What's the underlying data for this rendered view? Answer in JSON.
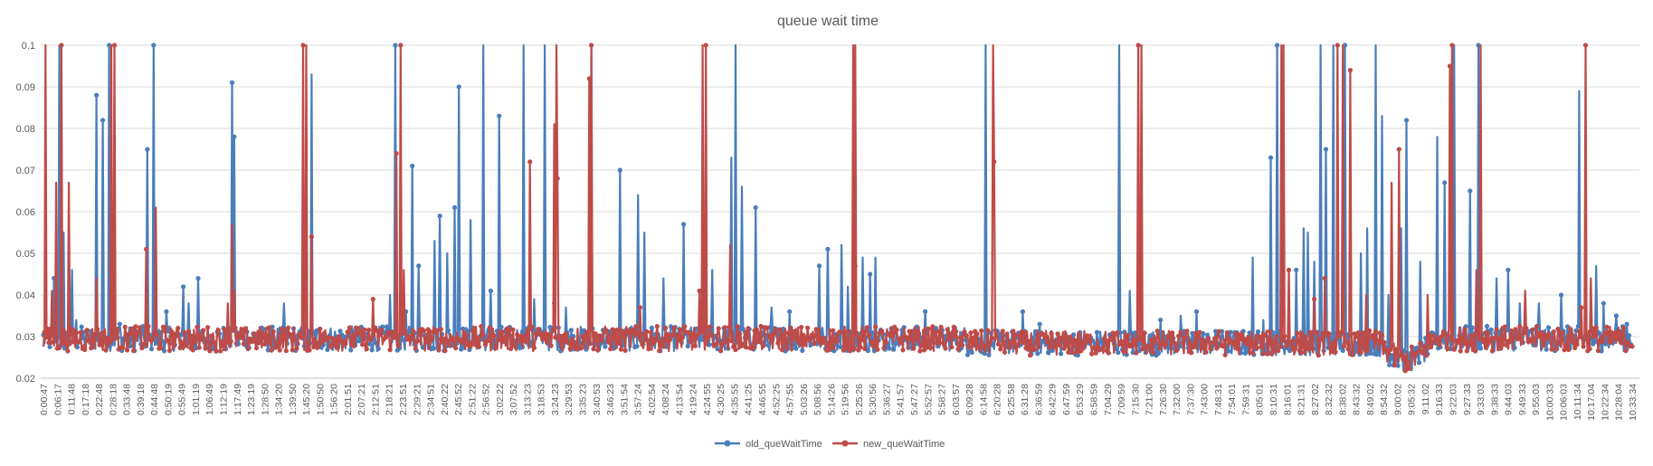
{
  "chart_data": {
    "type": "line",
    "title": "queue wait time",
    "xlabel": "",
    "ylabel": "",
    "ylim": [
      0.02,
      0.1
    ],
    "y_ticks": [
      "0.02",
      "0.03",
      "0.04",
      "0.05",
      "0.06",
      "0.07",
      "0.08",
      "0.09",
      "0.1"
    ],
    "grid": true,
    "legend_position": "bottom",
    "x_ticks": [
      "0:00:47",
      "0:06:17",
      "0:11:48",
      "0:17:18",
      "0:22:48",
      "0:28:18",
      "0:33:48",
      "0:39:18",
      "0:44:48",
      "0:50:19",
      "0:55:49",
      "1:01:19",
      "1:06:49",
      "1:12:19",
      "1:17:49",
      "1:23:19",
      "1:28:50",
      "1:34:20",
      "1:39:50",
      "1:45:20",
      "1:50:50",
      "1:56:20",
      "2:01:51",
      "2:07:21",
      "2:12:51",
      "2:18:21",
      "2:23:51",
      "2:29:21",
      "2:34:51",
      "2:40:22",
      "2:45:52",
      "2:51:22",
      "2:56:52",
      "3:02:22",
      "3:07:52",
      "3:13:23",
      "3:18:53",
      "3:24:23",
      "3:29:53",
      "3:35:23",
      "3:40:53",
      "3:46:23",
      "3:51:54",
      "3:57:24",
      "4:02:54",
      "4:08:24",
      "4:13:54",
      "4:19:24",
      "4:24:55",
      "4:30:25",
      "4:35:55",
      "4:41:25",
      "4:46:55",
      "4:52:25",
      "4:57:55",
      "5:03:26",
      "5:08:56",
      "5:14:26",
      "5:19:56",
      "5:25:26",
      "5:30:56",
      "5:36:27",
      "5:41:57",
      "5:47:27",
      "5:52:57",
      "5:58:27",
      "6:03:57",
      "6:09:28",
      "6:14:58",
      "6:20:28",
      "6:25:58",
      "6:31:28",
      "6:36:59",
      "6:42:29",
      "6:47:59",
      "6:53:29",
      "6:58:59",
      "7:04:29",
      "7:09:59",
      "7:15:30",
      "7:21:00",
      "7:26:30",
      "7:32:00",
      "7:37:30",
      "7:43:00",
      "7:48:31",
      "7:54:01",
      "7:59:31",
      "8:05:01",
      "8:10:31",
      "8:16:01",
      "8:21:31",
      "8:27:02",
      "8:32:32",
      "8:38:02",
      "8:43:32",
      "8:49:02",
      "8:54:32",
      "9:00:02",
      "9:05:32",
      "9:11:02",
      "9:16:33",
      "9:22:03",
      "9:27:33",
      "9:33:03",
      "9:38:33",
      "9:44:03",
      "9:49:33",
      "9:55:03",
      "10:00:33",
      "10:06:03",
      "10:11:34",
      "10:17:04",
      "10:22:34",
      "10:28:04",
      "10:33:34"
    ],
    "series": [
      {
        "name": "old_queWaitTime",
        "color": "#4a7ebb",
        "spikes": [
          [
            0.01,
            0.044
          ],
          [
            0.015,
            0.1
          ],
          [
            0.02,
            0.055
          ],
          [
            0.028,
            0.046
          ],
          [
            0.032,
            0.034
          ],
          [
            0.052,
            0.088
          ],
          [
            0.058,
            0.082
          ],
          [
            0.064,
            0.1
          ],
          [
            0.068,
            0.042
          ],
          [
            0.074,
            0.033
          ],
          [
            0.101,
            0.075
          ],
          [
            0.108,
            0.1
          ],
          [
            0.12,
            0.036
          ],
          [
            0.137,
            0.042
          ],
          [
            0.142,
            0.038
          ],
          [
            0.151,
            0.044
          ],
          [
            0.184,
            0.091
          ],
          [
            0.186,
            0.078
          ],
          [
            0.235,
            0.038
          ],
          [
            0.262,
            0.093
          ],
          [
            0.338,
            0.04
          ],
          [
            0.343,
            0.1
          ],
          [
            0.354,
            0.036
          ],
          [
            0.36,
            0.071
          ],
          [
            0.366,
            0.047
          ],
          [
            0.382,
            0.053
          ],
          [
            0.387,
            0.059
          ],
          [
            0.394,
            0.05
          ],
          [
            0.401,
            0.061
          ],
          [
            0.405,
            0.09
          ],
          [
            0.417,
            0.058
          ],
          [
            0.429,
            0.1
          ],
          [
            0.436,
            0.041
          ],
          [
            0.445,
            0.083
          ],
          [
            0.453,
            0.032
          ],
          [
            0.468,
            0.1
          ],
          [
            0.479,
            0.039
          ],
          [
            0.489,
            0.1
          ],
          [
            0.498,
            0.038
          ],
          [
            0.51,
            0.037
          ],
          [
            0.535,
            0.1
          ],
          [
            0.562,
            0.07
          ],
          [
            0.58,
            0.064
          ],
          [
            0.586,
            0.055
          ],
          [
            0.605,
            0.044
          ],
          [
            0.625,
            0.057
          ],
          [
            0.645,
            0.05
          ],
          [
            0.652,
            0.046
          ],
          [
            0.671,
            0.073
          ],
          [
            0.675,
            0.1
          ],
          [
            0.681,
            0.066
          ],
          [
            0.695,
            0.061
          ],
          [
            0.71,
            0.037
          ],
          [
            0.728,
            0.036
          ],
          [
            0.757,
            0.047
          ],
          [
            0.765,
            0.051
          ],
          [
            0.779,
            0.052
          ],
          [
            0.785,
            0.042
          ],
          [
            0.792,
            0.047
          ],
          [
            0.799,
            0.049
          ],
          [
            0.807,
            0.045
          ],
          [
            0.812,
            0.049
          ],
          [
            0.86,
            0.036
          ],
          [
            0.919,
            0.1
          ],
          [
            0.955,
            0.036
          ],
          [
            0.972,
            0.033
          ],
          [
            1.05,
            0.1
          ],
          [
            1.06,
            0.041
          ],
          [
            1.09,
            0.034
          ],
          [
            1.11,
            0.035
          ],
          [
            1.125,
            0.036
          ],
          [
            1.18,
            0.049
          ],
          [
            1.19,
            0.034
          ],
          [
            1.197,
            0.073
          ],
          [
            1.204,
            0.1
          ],
          [
            1.222,
            0.046
          ],
          [
            1.229,
            0.056
          ],
          [
            1.234,
            0.055
          ],
          [
            1.24,
            0.048
          ],
          [
            1.246,
            0.1
          ],
          [
            1.251,
            0.075
          ],
          [
            1.258,
            0.1
          ],
          [
            1.27,
            0.1
          ],
          [
            1.285,
            0.05
          ],
          [
            1.292,
            0.056
          ],
          [
            1.3,
            0.1
          ],
          [
            1.306,
            0.083
          ],
          [
            1.312,
            0.04
          ],
          [
            1.325,
            0.056
          ],
          [
            1.33,
            0.082
          ],
          [
            1.343,
            0.048
          ],
          [
            1.36,
            0.078
          ],
          [
            1.367,
            0.067
          ],
          [
            1.376,
            0.1
          ],
          [
            1.392,
            0.065
          ],
          [
            1.4,
            0.1
          ],
          [
            1.418,
            0.044
          ],
          [
            1.429,
            0.046
          ],
          [
            1.44,
            0.038
          ],
          [
            1.459,
            0.038
          ],
          [
            1.481,
            0.04
          ],
          [
            1.498,
            0.089
          ],
          [
            1.515,
            0.047
          ],
          [
            1.522,
            0.038
          ],
          [
            1.535,
            0.035
          ],
          [
            1.545,
            0.033
          ]
        ]
      },
      {
        "name": "new_queWaitTime",
        "color": "#be4b48",
        "spikes": [
          [
            0.002,
            0.1
          ],
          [
            0.008,
            0.041
          ],
          [
            0.012,
            0.067
          ],
          [
            0.018,
            0.1
          ],
          [
            0.025,
            0.067
          ],
          [
            0.052,
            0.044
          ],
          [
            0.066,
            0.1
          ],
          [
            0.069,
            0.1
          ],
          [
            0.1,
            0.051
          ],
          [
            0.11,
            0.061
          ],
          [
            0.18,
            0.038
          ],
          [
            0.184,
            0.057
          ],
          [
            0.186,
            0.041
          ],
          [
            0.253,
            0.1
          ],
          [
            0.256,
            0.1
          ],
          [
            0.262,
            0.054
          ],
          [
            0.322,
            0.039
          ],
          [
            0.344,
            0.074
          ],
          [
            0.348,
            0.1
          ],
          [
            0.352,
            0.046
          ],
          [
            0.475,
            0.072
          ],
          [
            0.498,
            0.081
          ],
          [
            0.5,
            0.1
          ],
          [
            0.502,
            0.068
          ],
          [
            0.533,
            0.092
          ],
          [
            0.535,
            0.1
          ],
          [
            0.582,
            0.037
          ],
          [
            0.64,
            0.041
          ],
          [
            0.643,
            0.1
          ],
          [
            0.646,
            0.1
          ],
          [
            0.67,
            0.052
          ],
          [
            0.79,
            0.1
          ],
          [
            0.792,
            0.1
          ],
          [
            0.926,
            0.1
          ],
          [
            0.928,
            0.072
          ],
          [
            1.068,
            0.1
          ],
          [
            1.071,
            0.1
          ],
          [
            1.208,
            0.1
          ],
          [
            1.21,
            0.1
          ],
          [
            1.215,
            0.046
          ],
          [
            1.24,
            0.039
          ],
          [
            1.25,
            0.044
          ],
          [
            1.263,
            0.1
          ],
          [
            1.268,
            0.1
          ],
          [
            1.275,
            0.094
          ],
          [
            1.29,
            0.04
          ],
          [
            1.315,
            0.067
          ],
          [
            1.323,
            0.075
          ],
          [
            1.35,
            0.04
          ],
          [
            1.372,
            0.095
          ],
          [
            1.374,
            0.1
          ],
          [
            1.398,
            0.046
          ],
          [
            1.402,
            0.1
          ],
          [
            1.446,
            0.041
          ],
          [
            1.5,
            0.037
          ],
          [
            1.505,
            0.1
          ],
          [
            1.51,
            0.044
          ]
        ]
      }
    ]
  }
}
